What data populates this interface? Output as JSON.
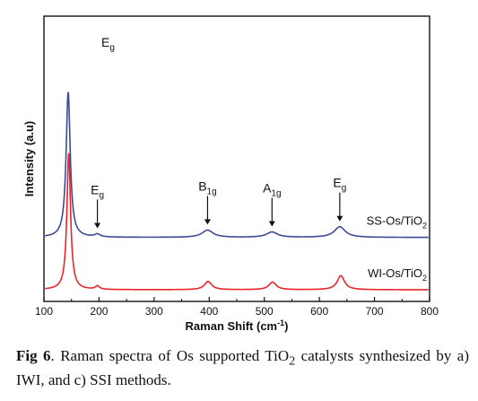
{
  "chart_data": {
    "type": "line",
    "xlabel": "Raman Shift (cm",
    "xlabel_sup": "-1",
    "xlabel_end": ")",
    "ylabel": "Intensity (a.u)",
    "xlim": [
      100,
      800
    ],
    "x_ticks": [
      "100",
      "200",
      "300",
      "400",
      "500",
      "600",
      "700",
      "800"
    ],
    "y_ticks": "none",
    "grid": false,
    "series": [
      {
        "name": "SS-Os/TiO",
        "name_sub": "2",
        "color": "#3b4b9a",
        "baseline": 0.54,
        "peaks": [
          {
            "x": 144,
            "height": 1.5,
            "width": 4.5
          },
          {
            "x": 197,
            "height": 0.028,
            "width": 6
          },
          {
            "x": 397,
            "height": 0.075,
            "width": 12
          },
          {
            "x": 514,
            "height": 0.055,
            "width": 12
          },
          {
            "x": 637,
            "height": 0.11,
            "width": 12
          }
        ]
      },
      {
        "name": "WI-Os/TiO",
        "name_sub": "2",
        "color": "#e8262a",
        "baseline": 0.0,
        "peaks": [
          {
            "x": 145,
            "height": 1.41,
            "width": 4.0
          },
          {
            "x": 197,
            "height": 0.035,
            "width": 4.5
          },
          {
            "x": 398,
            "height": 0.085,
            "width": 8
          },
          {
            "x": 515,
            "height": 0.078,
            "width": 8
          },
          {
            "x": 639,
            "height": 0.145,
            "width": 8
          }
        ]
      }
    ],
    "annotations": [
      {
        "text": "E",
        "sub": "g",
        "x": 200,
        "arrow": false
      },
      {
        "text": "E",
        "sub": "g",
        "x": 197,
        "arrow": true
      },
      {
        "text": "B",
        "sub": "1g",
        "x": 397,
        "arrow": true
      },
      {
        "text": "A",
        "sub": "1g",
        "x": 514,
        "arrow": true
      },
      {
        "text": "E",
        "sub": "g",
        "x": 637,
        "arrow": true
      }
    ]
  },
  "caption": {
    "fig_no": "Fig 6",
    "text_1": ". Raman spectra of Os supported TiO",
    "sub": "2",
    "text_2": " catalysts synthesized by a) IWI, and c) SSI methods."
  }
}
